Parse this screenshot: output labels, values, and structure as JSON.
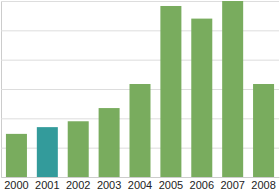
{
  "chart_data": {
    "type": "bar",
    "categories": [
      "2000",
      "2001",
      "2002",
      "2003",
      "2004",
      "2005",
      "2006",
      "2007",
      "2008"
    ],
    "values": [
      1.47,
      1.7,
      1.9,
      2.35,
      3.17,
      5.83,
      5.4,
      6.0,
      3.17
    ],
    "colors": [
      "#79ac5e",
      "#339b9b",
      "#79ac5e",
      "#79ac5e",
      "#79ac5e",
      "#79ac5e",
      "#79ac5e",
      "#79ac5e",
      "#79ac5e"
    ],
    "ylim": [
      0,
      6
    ],
    "yticks": [
      0,
      1,
      2,
      3,
      4,
      5,
      6
    ],
    "grid": true,
    "tick_labels": "x"
  }
}
